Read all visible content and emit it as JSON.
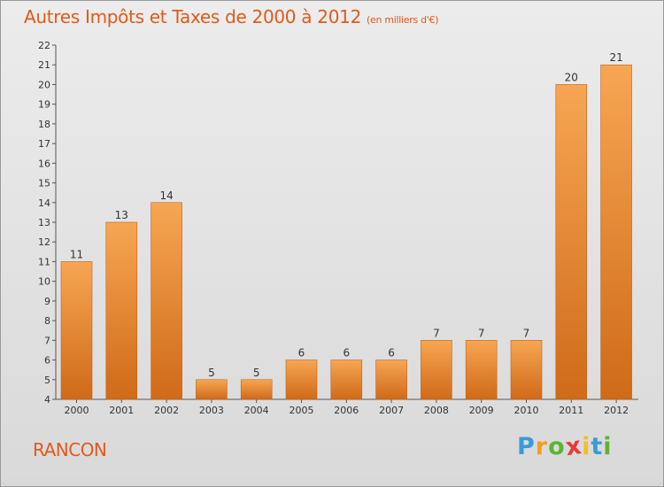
{
  "title": "Autres Impôts et Taxes de 2000 à 2012",
  "title_unit": "(en milliers d'€)",
  "town": "RANCON",
  "logo": {
    "letters": [
      "P",
      "r",
      "o",
      "x",
      "i",
      "t",
      "i"
    ],
    "colors": [
      "#3a9ad9",
      "#f0a020",
      "#5cb531",
      "#e8393b",
      "#f0c020",
      "#3a9ad9",
      "#5cb531"
    ]
  },
  "colors": {
    "bar_light": "#f7a653",
    "bar_dark": "#cf6a18",
    "title": "#e05a1c"
  },
  "chart_data": {
    "type": "bar",
    "title": "Autres Impôts et Taxes de 2000 à 2012",
    "categories": [
      "2000",
      "2001",
      "2002",
      "2003",
      "2004",
      "2005",
      "2006",
      "2007",
      "2008",
      "2009",
      "2010",
      "2011",
      "2012"
    ],
    "values": [
      11,
      13,
      14,
      5,
      5,
      6,
      6,
      6,
      7,
      7,
      7,
      20,
      21
    ],
    "ylim": [
      4,
      22
    ],
    "yticks": [
      4,
      5,
      6,
      7,
      8,
      9,
      10,
      11,
      12,
      13,
      14,
      15,
      16,
      17,
      18,
      19,
      20,
      21,
      22
    ],
    "grid": false,
    "xlabel": "",
    "ylabel": ""
  }
}
